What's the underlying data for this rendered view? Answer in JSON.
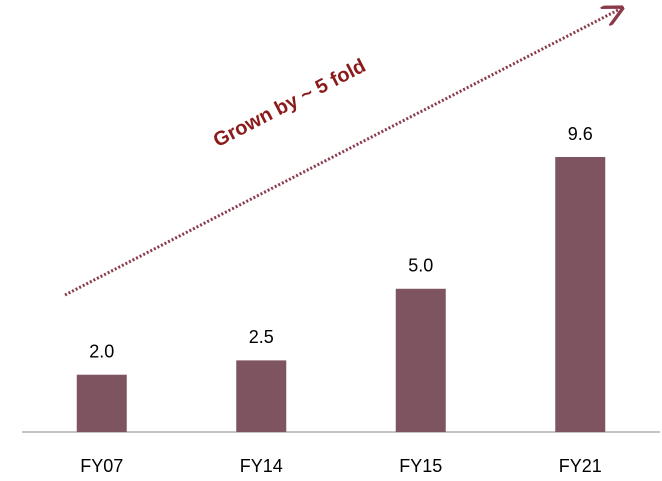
{
  "chart_data": {
    "type": "bar",
    "categories": [
      "FY07",
      "FY14",
      "FY15",
      "FY21"
    ],
    "values": [
      2.0,
      2.5,
      5.0,
      9.6
    ],
    "value_labels": [
      "2.0",
      "2.5",
      "5.0",
      "9.6"
    ],
    "color": "#7f5461",
    "annotation": "Grown by ~ 5 fold"
  }
}
